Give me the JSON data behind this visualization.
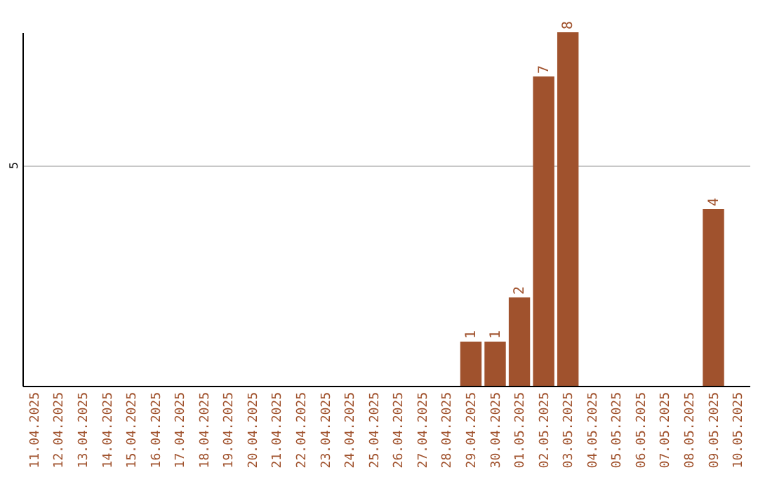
{
  "chart_data": {
    "type": "bar",
    "categories": [
      "11.04.2025",
      "12.04.2025",
      "13.04.2025",
      "14.04.2025",
      "15.04.2025",
      "16.04.2025",
      "17.04.2025",
      "18.04.2025",
      "19.04.2025",
      "20.04.2025",
      "21.04.2025",
      "22.04.2025",
      "23.04.2025",
      "24.04.2025",
      "25.04.2025",
      "26.04.2025",
      "27.04.2025",
      "28.04.2025",
      "29.04.2025",
      "30.04.2025",
      "01.05.2025",
      "02.05.2025",
      "03.05.2025",
      "04.05.2025",
      "05.05.2025",
      "06.05.2025",
      "07.05.2025",
      "08.05.2025",
      "09.05.2025",
      "10.05.2025"
    ],
    "values": [
      null,
      null,
      null,
      null,
      null,
      null,
      null,
      null,
      null,
      null,
      null,
      null,
      null,
      null,
      null,
      null,
      null,
      null,
      1,
      1,
      2,
      7,
      8,
      null,
      null,
      null,
      null,
      null,
      4,
      null
    ],
    "color": "#a0522d",
    "ylim": [
      0,
      8
    ],
    "yticks": [
      5
    ],
    "grid": "y",
    "data_labels": true
  }
}
